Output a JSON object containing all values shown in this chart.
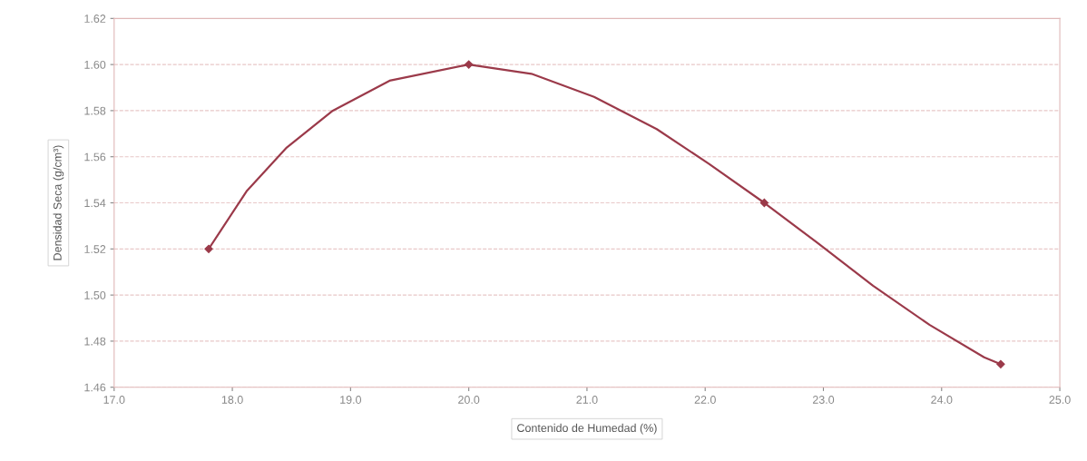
{
  "chart_data": {
    "type": "line",
    "xlabel": "Contenido de Humedad (%)",
    "ylabel": "Densidad Seca (g/cm³)",
    "x": [
      17.8,
      20.0,
      22.5,
      24.5
    ],
    "series": [
      {
        "color": "#9b3a4a",
        "marker": "none",
        "x": [
          17.8,
          18.12,
          18.46,
          18.85,
          19.33,
          20.0,
          20.53,
          21.06,
          21.59,
          22.03,
          22.5,
          22.94,
          23.42,
          23.9,
          24.36,
          24.5
        ],
        "values": [
          1.52,
          1.545,
          1.564,
          1.58,
          1.593,
          1.6,
          1.596,
          1.586,
          1.572,
          1.557,
          1.54,
          1.523,
          1.504,
          1.487,
          1.473,
          1.47
        ]
      },
      {
        "type": "scatter",
        "marker": "diamond",
        "color": "#9b3a4a",
        "values": [
          1.52,
          1.6,
          1.54,
          1.47
        ]
      }
    ],
    "xlim": [
      17.0,
      25.0
    ],
    "xticks": [
      {
        "value": 17,
        "label": "17.0"
      },
      {
        "value": 18,
        "label": "18.0"
      },
      {
        "value": 19,
        "label": "19.0"
      },
      {
        "value": 20,
        "label": "20.0"
      },
      {
        "value": 21,
        "label": "21.0"
      },
      {
        "value": 22,
        "label": "22.0"
      },
      {
        "value": 23,
        "label": "23.0"
      },
      {
        "value": 24,
        "label": "24.0"
      },
      {
        "value": 25,
        "label": "25.0"
      }
    ],
    "ylim": [
      1.46,
      1.62
    ],
    "yticks": [
      {
        "value": 1.46,
        "label": "1.46"
      },
      {
        "value": 1.48,
        "label": "1.48"
      },
      {
        "value": 1.5,
        "label": "1.50"
      },
      {
        "value": 1.52,
        "label": "1.52"
      },
      {
        "value": 1.54,
        "label": "1.54"
      },
      {
        "value": 1.56,
        "label": "1.56"
      },
      {
        "value": 1.58,
        "label": "1.58"
      },
      {
        "value": 1.6,
        "label": "1.60"
      },
      {
        "value": 1.62,
        "label": "1.62"
      }
    ],
    "grid": "y",
    "line_style": "solid"
  }
}
